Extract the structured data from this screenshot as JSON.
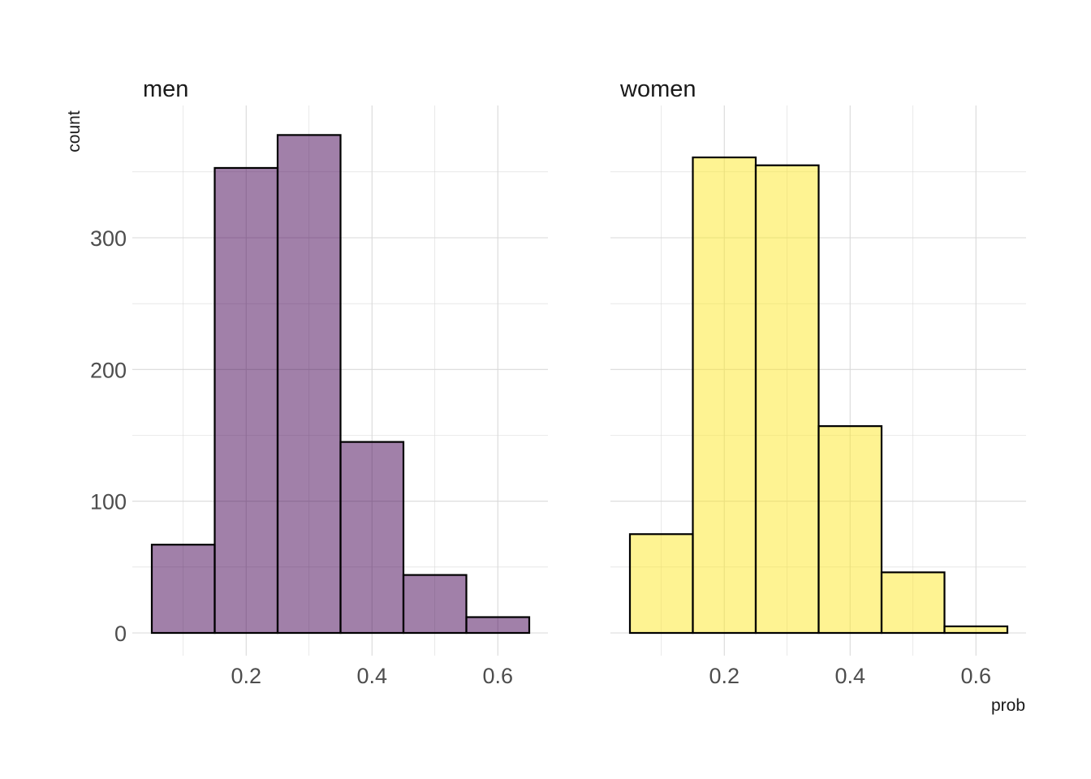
{
  "chart_data": {
    "type": "bar",
    "xlabel": "prob",
    "ylabel": "count",
    "ylim": [
      0,
      380
    ],
    "xlim": [
      0.05,
      0.65
    ],
    "y_ticks": [
      0,
      100,
      200,
      300
    ],
    "x_ticks": [
      0.2,
      0.4,
      0.6
    ],
    "y_tick_labels": [
      "0",
      "100",
      "200",
      "300"
    ],
    "x_tick_labels": [
      "0.2",
      "0.4",
      "0.6"
    ],
    "bin_edges": [
      0.05,
      0.15,
      0.25,
      0.35,
      0.45,
      0.55,
      0.65
    ],
    "grid": true,
    "facets": [
      {
        "title": "men",
        "color": "#440154",
        "opacity": 0.5,
        "values": [
          67,
          353,
          378,
          145,
          44,
          12
        ]
      },
      {
        "title": "women",
        "color": "#FDE725",
        "opacity": 0.5,
        "values": [
          75,
          361,
          355,
          157,
          46,
          5
        ]
      }
    ]
  }
}
